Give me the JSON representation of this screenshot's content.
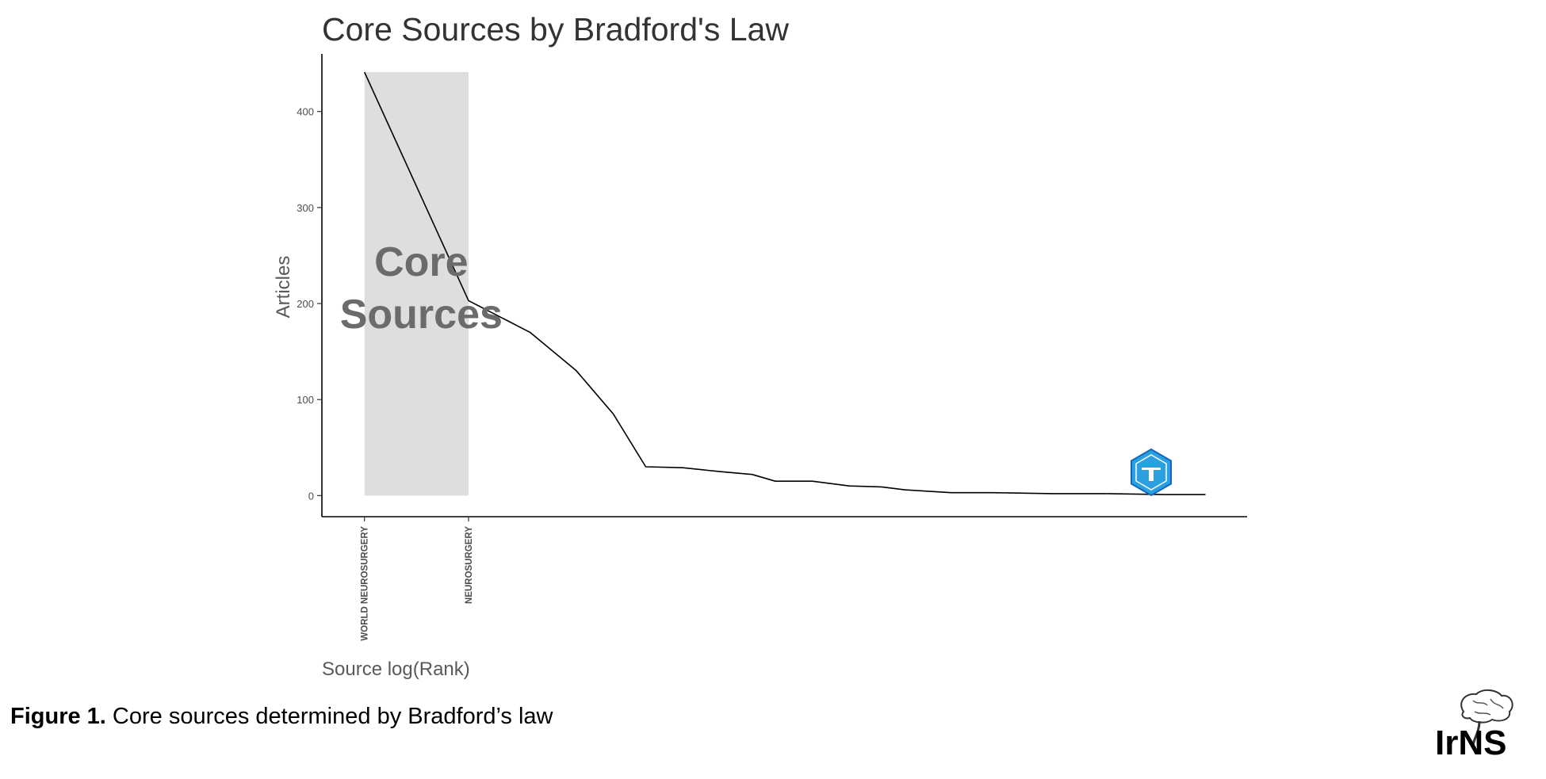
{
  "chart_data": {
    "type": "line",
    "title": "Core Sources by Bradford's Law",
    "xlabel": "Source log(Rank)",
    "ylabel": "Articles",
    "ylim": [
      -22,
      460
    ],
    "yticks": [
      0,
      100,
      200,
      300,
      400
    ],
    "x_scale": "log",
    "xlim": [
      0.62,
      2.62
    ],
    "categories": [
      "WORLD NEUROSURGERY",
      "NEUROSURGERY"
    ],
    "series": [
      {
        "x": [
          0.712,
          0.937,
          1.07,
          1.17,
          1.25,
          1.32,
          1.4,
          1.48,
          1.55,
          1.6,
          1.68,
          1.76,
          1.83,
          1.88,
          1.98,
          2.07,
          2.2,
          2.31,
          2.44,
          2.53
        ],
        "y": [
          441,
          203,
          170,
          130,
          85,
          30,
          29,
          25,
          22,
          15,
          15,
          10,
          9,
          6,
          3,
          3,
          2,
          2,
          1,
          1
        ]
      }
    ],
    "core_zone": {
      "x_start": 0.712,
      "x_end": 0.937,
      "top": 441,
      "label_line1": "Core",
      "label_line2": "Sources",
      "fill": "#dedede"
    },
    "grid": false,
    "legend": "none",
    "line_color": "#000000"
  },
  "caption": {
    "prefix": "Figure 1.",
    "text": " Core sources determined by Bradford’s law"
  },
  "logo": {
    "text": "IrNS",
    "icon": "brain-spine-logo-icon"
  },
  "watermark_icon": "hexagon-badge-icon"
}
